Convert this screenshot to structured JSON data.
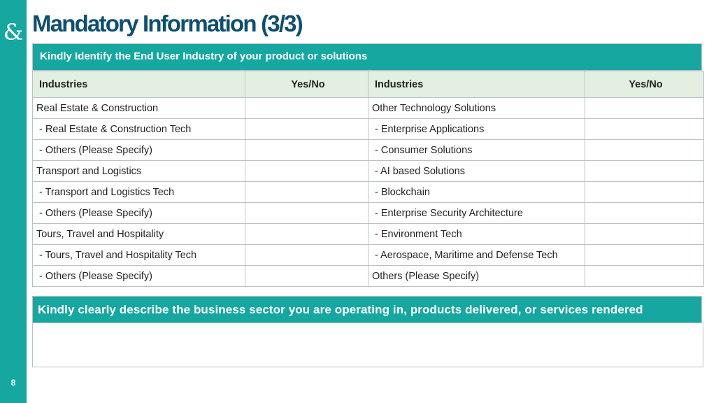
{
  "slide": {
    "title": "Mandatory Information (3/3)",
    "page_number": "8",
    "logo_icon": "ampersand-logo-icon",
    "logo_glyph": "&"
  },
  "section1": {
    "header": "Kindly Identify the End User Industry of your product or solutions",
    "columns": [
      "Industries",
      "Yes/No",
      "Industries",
      "Yes/No"
    ],
    "rows": [
      {
        "left": "Real Estate & Construction",
        "right": "Other Technology Solutions"
      },
      {
        "left": "- Real Estate & Construction Tech",
        "right": "- Enterprise Applications"
      },
      {
        "left": "- Others (Please Specify)",
        "right": "- Consumer Solutions"
      },
      {
        "left": "Transport and Logistics",
        "right": "- AI based Solutions"
      },
      {
        "left": "- Transport and Logistics Tech",
        "right": "- Blockchain"
      },
      {
        "left": "- Others (Please Specify)",
        "right": "- Enterprise Security Architecture"
      },
      {
        "left": "Tours, Travel and Hospitality",
        "right": "- Environment Tech"
      },
      {
        "left": "- Tours, Travel and Hospitality Tech",
        "right": "- Aerospace, Maritime and Defense Tech"
      },
      {
        "left": "- Others (Please Specify)",
        "right": "Others (Please Specify)"
      }
    ]
  },
  "section2": {
    "header": "Kindly clearly describe the business sector you are operating in, products delivered, or services rendered",
    "answer": ""
  },
  "colors": {
    "accent": "#15a7a0",
    "title": "#0d4f70",
    "table_header_bg": "#e3efe1",
    "border": "#b9c3c3"
  }
}
